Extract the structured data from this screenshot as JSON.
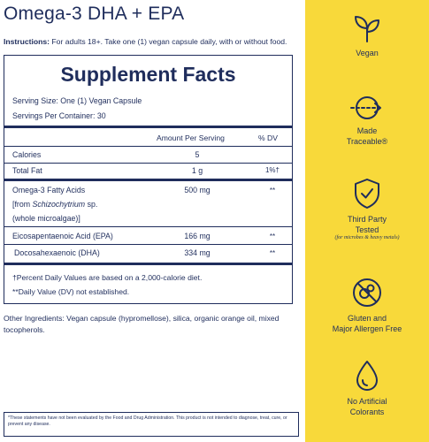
{
  "header": {
    "title": "Omega-3 DHA + EPA",
    "instructions_label": "Instructions:",
    "instructions_text": " For adults 18+. Take one (1) vegan capsule daily, with or without food."
  },
  "facts": {
    "title": "Supplement Facts",
    "serving_size": "Serving Size: One (1) Vegan Capsule",
    "servings_per_container": "Servings Per Container: 30",
    "col_amount": "Amount Per Serving",
    "col_dv": "% DV",
    "rows": [
      {
        "name": "Calories",
        "amount": "5",
        "dv": ""
      },
      {
        "name": "Total Fat",
        "amount": "1 g",
        "dv": "1%†"
      },
      {
        "name": "Omega-3 Fatty Acids",
        "name2": "[from ",
        "name2_italic": "Schizochytrium",
        "name2_rest": " sp.",
        "name3": "(whole microalgae)]",
        "amount": "500 mg",
        "dv": "**"
      },
      {
        "name": "Eicosapentaenoic Acid (EPA)",
        "amount": "166 mg",
        "dv": "**"
      },
      {
        "name": "Docosahexaenoic (DHA)",
        "amount": "334 mg",
        "dv": "**"
      }
    ],
    "footnote_1": "†Percent Daily Values are based on a 2,000-calorie diet.",
    "footnote_2": "**Daily Value (DV) not established."
  },
  "other_ingredients": {
    "label": "Other Ingredients:",
    "text": " Vegan capsule (hypromellose), silica, organic orange oil, mixed tocopherols."
  },
  "disclaimer": "*These statements have not been evaluated by the Food and Drug Administration. This product is not intended to diagnose, treat, cure, or prevent any disease.",
  "badges": [
    {
      "icon": "sprout-icon",
      "label": "Vegan"
    },
    {
      "icon": "traceable-arrow-icon",
      "label": "Made",
      "label2": "Traceable®"
    },
    {
      "icon": "shield-check-icon",
      "label": "Third Party",
      "label2": "Tested",
      "sub": "(for microbes & heavy metals)"
    },
    {
      "icon": "allergen-free-icon",
      "label": "Gluten and",
      "label2": "Major Allergen Free"
    },
    {
      "icon": "droplet-icon",
      "label": "No Artificial",
      "label2": "Colorants"
    }
  ],
  "colors": {
    "navy": "#1f2d5c",
    "yellow": "#f8d93a"
  }
}
